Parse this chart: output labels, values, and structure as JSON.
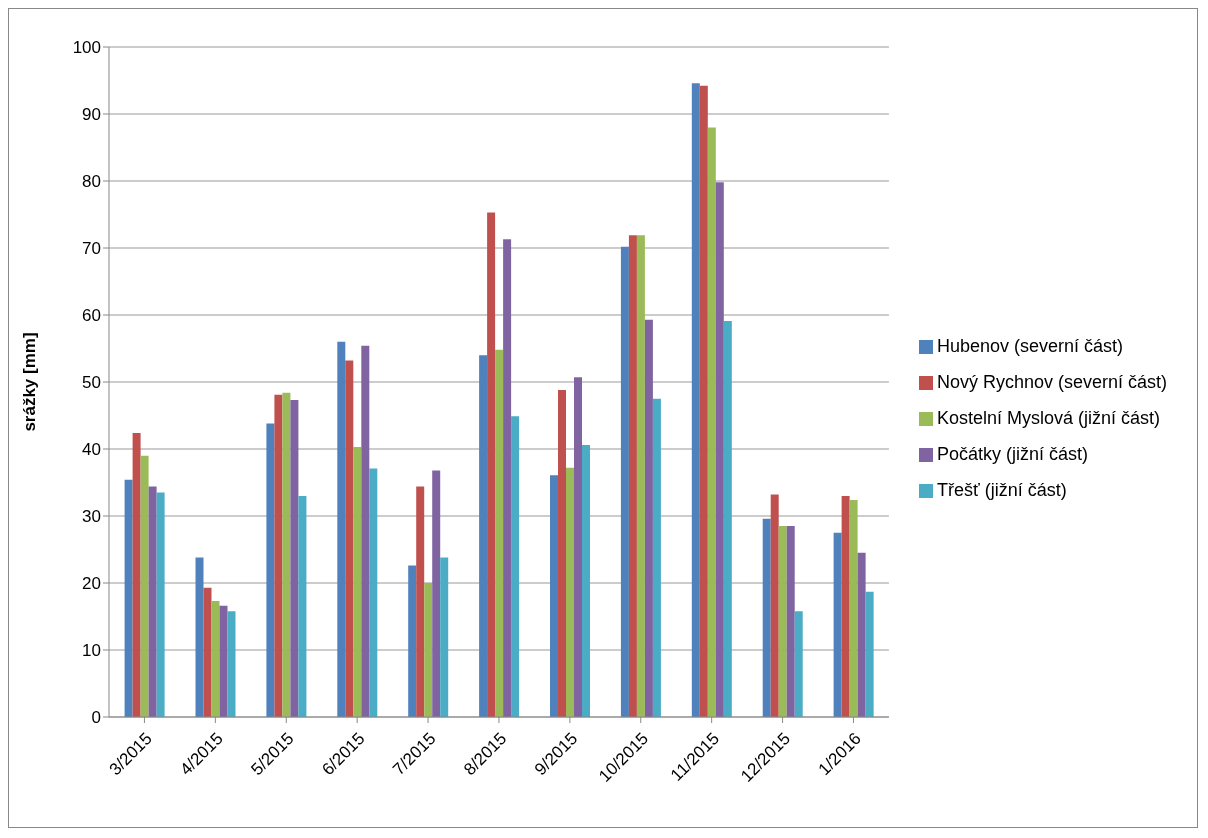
{
  "chart_data": {
    "type": "bar",
    "ylabel": "srážky [mm]",
    "categories": [
      "3/2015",
      "4/2015",
      "5/2015",
      "6/2015",
      "7/2015",
      "8/2015",
      "9/2015",
      "10/2015",
      "11/2015",
      "12/2015",
      "1/2016"
    ],
    "series": [
      {
        "name": "Hubenov (severní část)",
        "color": "#4f81bd",
        "values": [
          35.4,
          23.8,
          43.8,
          56,
          22.6,
          54,
          36.1,
          70.2,
          94.6,
          29.6,
          27.5
        ]
      },
      {
        "name": "Nový Rychnov (severní část)",
        "color": "#c0504d",
        "values": [
          42.4,
          19.3,
          48.1,
          53.2,
          34.4,
          75.3,
          48.8,
          71.9,
          94.2,
          33.2,
          33
        ]
      },
      {
        "name": "Kostelní Myslová (jižní část)",
        "color": "#9bbb59",
        "values": [
          39,
          17.3,
          48.4,
          40.3,
          20,
          54.8,
          37.2,
          71.9,
          88,
          28.5,
          32.4
        ]
      },
      {
        "name": "Počátky (jižní část)",
        "color": "#8064a2",
        "values": [
          34.4,
          16.6,
          47.3,
          55.4,
          36.8,
          71.3,
          50.7,
          59.3,
          79.8,
          28.5,
          24.5
        ]
      },
      {
        "name": "Třešť (jižní část)",
        "color": "#4bacc6",
        "values": [
          33.5,
          15.8,
          33,
          37.1,
          23.8,
          44.9,
          40.6,
          47.5,
          59.1,
          15.8,
          18.7
        ]
      }
    ],
    "ylim": [
      0,
      100
    ],
    "yticks": [
      0,
      10,
      20,
      30,
      40,
      50,
      60,
      70,
      80,
      90,
      100
    ],
    "grid": "y",
    "legend": "right"
  }
}
